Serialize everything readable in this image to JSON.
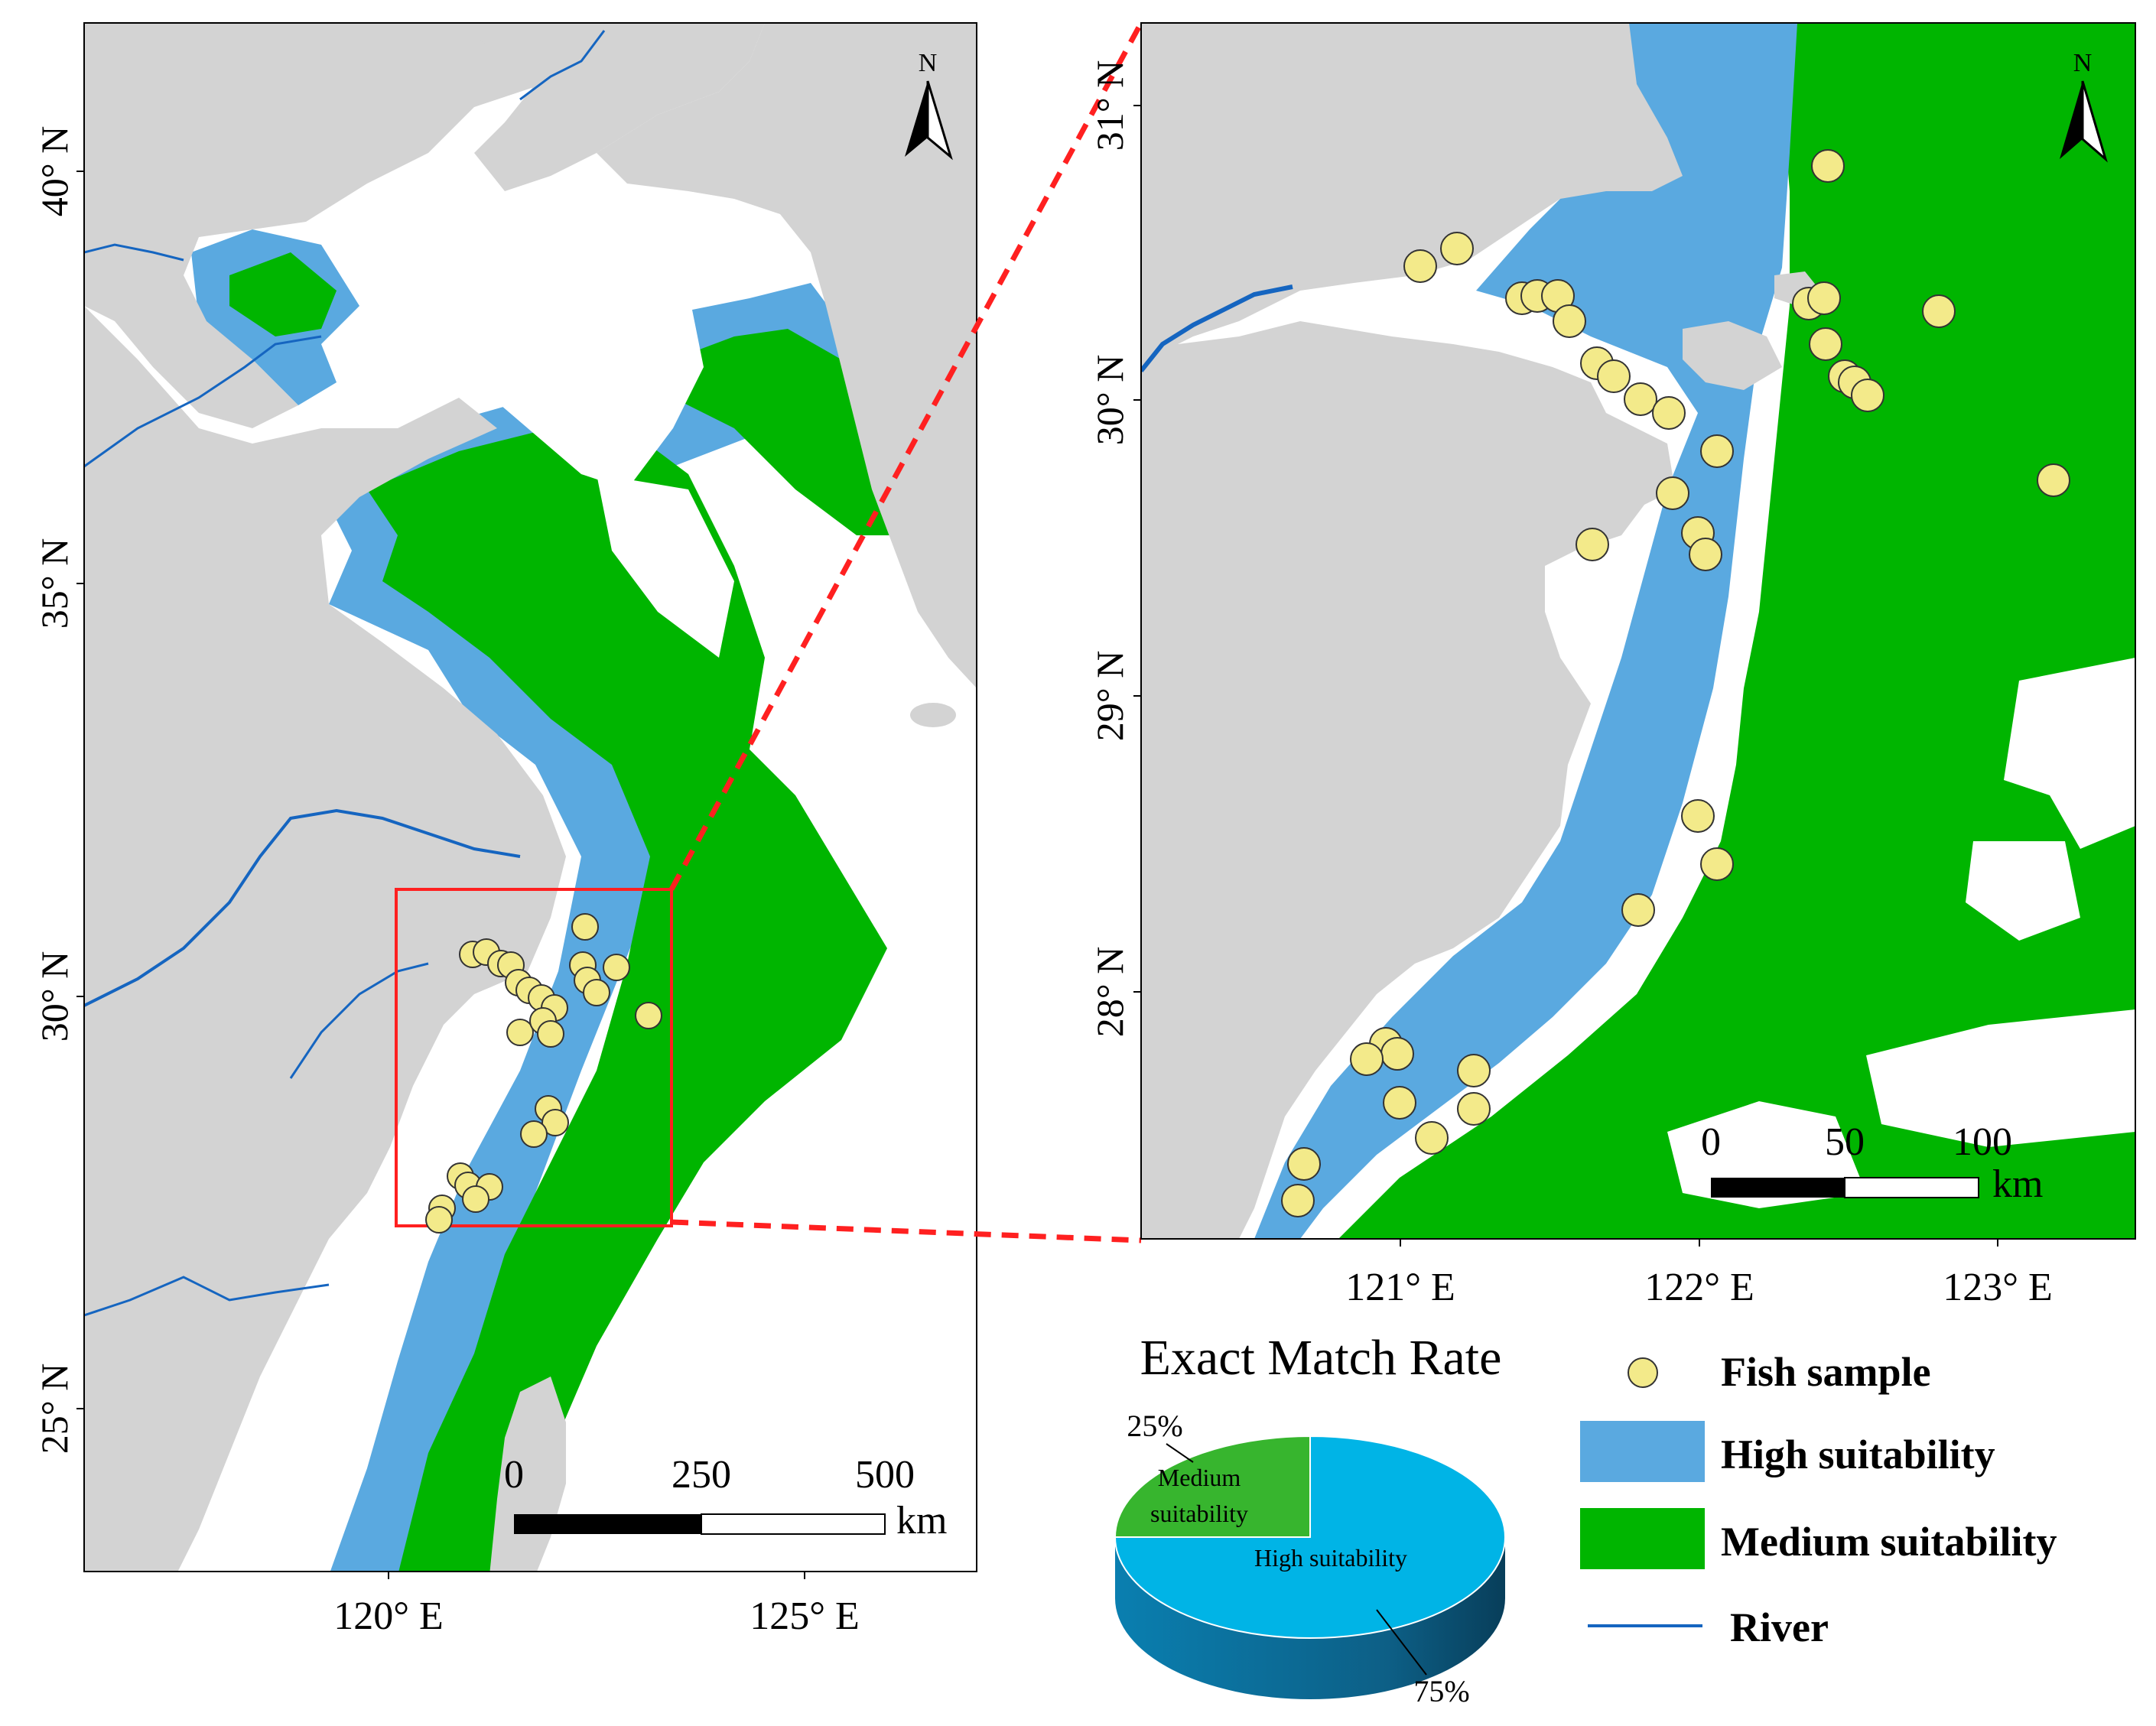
{
  "left_map": {
    "lat_labels": [
      "40° N",
      "35° N",
      "30° N",
      "25° N"
    ],
    "lon_labels": [
      "120° E",
      "125° E"
    ],
    "north_label": "N",
    "scale": {
      "ticks": [
        "0",
        "250",
        "500"
      ],
      "unit": "km"
    }
  },
  "right_map": {
    "lat_labels": [
      "31° N",
      "30° N",
      "29° N",
      "28° N"
    ],
    "lon_labels": [
      "121° E",
      "122° E",
      "123° E"
    ],
    "north_label": "N",
    "scale": {
      "ticks": [
        "0",
        "50",
        "100"
      ],
      "unit": "km"
    }
  },
  "pie": {
    "title": "Exact Match Rate",
    "slices": [
      {
        "label": "High suitability",
        "percent": "75%",
        "value": 75,
        "color": "#00b4e6"
      },
      {
        "label": "Medium suitability",
        "percent": "25%",
        "value": 25,
        "color": "#37b52e"
      }
    ]
  },
  "legend": {
    "items": [
      {
        "label": "Fish sample",
        "symbol": "circle",
        "color": "#f3ea8a"
      },
      {
        "label": "High suitability",
        "symbol": "box",
        "color": "#5aa9e0"
      },
      {
        "label": "Medium suitability",
        "symbol": "box",
        "color": "#00b500"
      },
      {
        "label": "River",
        "symbol": "line",
        "color": "#1565c0"
      }
    ]
  },
  "colors": {
    "land": "#d3d3d3",
    "high": "#5aa9e0",
    "medium": "#00b500",
    "river": "#1565c0",
    "sample": "#f3ea8a",
    "highlight": "#ff2020"
  }
}
